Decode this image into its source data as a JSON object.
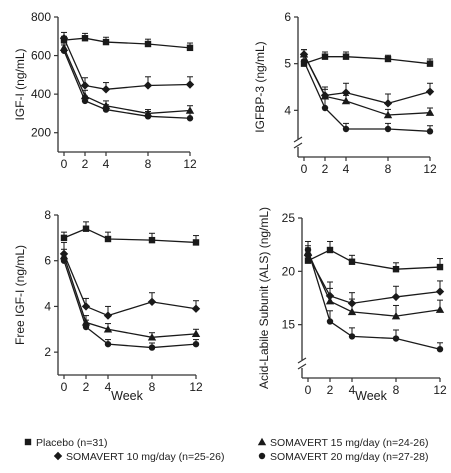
{
  "colors": {
    "ink": "#1a1a1a",
    "axis": "#333333"
  },
  "legend": {
    "entries": [
      {
        "label": "Placebo (n=31)",
        "marker": "square"
      },
      {
        "label": "SOMAVERT 10 mg/day (n=25-26)",
        "marker": "diamond"
      },
      {
        "label": "SOMAVERT 15 mg/day (n=24-26)",
        "marker": "triangle"
      },
      {
        "label": "SOMAVERT 20 mg/day (n=27-28)",
        "marker": "circle"
      }
    ]
  },
  "chart_data": [
    {
      "type": "line",
      "ylabel": "IGF-I (ng/mL)",
      "xlabel": "",
      "ylim": [
        100,
        800
      ],
      "yticks": [
        200,
        400,
        600,
        800
      ],
      "x": [
        0,
        2,
        4,
        8,
        12
      ],
      "xtick_labels": [
        "0",
        "2",
        "4",
        "8",
        "12"
      ],
      "axis_break": false,
      "series": [
        {
          "marker": "square",
          "values": [
            680,
            690,
            670,
            660,
            640
          ],
          "err": [
            20,
            25,
            25,
            25,
            25
          ]
        },
        {
          "marker": "diamond",
          "values": [
            690,
            445,
            425,
            445,
            450
          ],
          "err": [
            30,
            40,
            35,
            45,
            40
          ]
        },
        {
          "marker": "triangle",
          "values": [
            640,
            390,
            340,
            300,
            315
          ],
          "err": [
            25,
            30,
            25,
            20,
            25
          ]
        },
        {
          "marker": "circle",
          "values": [
            625,
            365,
            320,
            285,
            275
          ],
          "err": [
            30,
            25,
            25,
            25,
            30
          ]
        }
      ]
    },
    {
      "type": "line",
      "ylabel": "IGFBP-3 (ng/mL)",
      "xlabel": "",
      "ylim": [
        3,
        6
      ],
      "yticks": [
        4,
        5,
        6
      ],
      "x": [
        0,
        2,
        4,
        8,
        12
      ],
      "xtick_labels": [
        "0",
        "2",
        "4",
        "8",
        "12"
      ],
      "axis_break": true,
      "series": [
        {
          "marker": "square",
          "values": [
            5.0,
            5.15,
            5.15,
            5.1,
            5.0
          ],
          "err": [
            0.08,
            0.1,
            0.1,
            0.08,
            0.1
          ]
        },
        {
          "marker": "diamond",
          "values": [
            5.2,
            4.32,
            4.38,
            4.15,
            4.4
          ],
          "err": [
            0.1,
            0.18,
            0.2,
            0.2,
            0.18
          ]
        },
        {
          "marker": "triangle",
          "values": [
            5.2,
            4.3,
            4.2,
            3.9,
            3.95
          ],
          "err": [
            0.1,
            0.15,
            0.12,
            0.12,
            0.1
          ]
        },
        {
          "marker": "circle",
          "values": [
            5.05,
            4.05,
            3.6,
            3.6,
            3.55
          ],
          "err": [
            0.1,
            0.2,
            0.12,
            0.12,
            0.12
          ]
        }
      ]
    },
    {
      "type": "line",
      "ylabel": "Free IGF-I (ng/mL)",
      "xlabel": "Week",
      "ylim": [
        1,
        8
      ],
      "yticks": [
        2,
        4,
        6,
        8
      ],
      "x": [
        0,
        2,
        4,
        8,
        12
      ],
      "xtick_labels": [
        "0",
        "2",
        "4",
        "8",
        "12"
      ],
      "axis_break": false,
      "series": [
        {
          "marker": "square",
          "values": [
            7.0,
            7.4,
            6.95,
            6.9,
            6.8
          ],
          "err": [
            0.25,
            0.3,
            0.3,
            0.3,
            0.3
          ]
        },
        {
          "marker": "diamond",
          "values": [
            6.3,
            4.0,
            3.6,
            4.2,
            3.9
          ],
          "err": [
            0.5,
            0.35,
            0.4,
            0.4,
            0.35
          ]
        },
        {
          "marker": "triangle",
          "values": [
            6.2,
            3.3,
            3.0,
            2.65,
            2.8
          ],
          "err": [
            0.3,
            0.3,
            0.25,
            0.2,
            0.2
          ]
        },
        {
          "marker": "circle",
          "values": [
            6.0,
            3.1,
            2.35,
            2.2,
            2.35
          ],
          "err": [
            0.3,
            0.3,
            0.2,
            0.2,
            0.2
          ]
        }
      ]
    },
    {
      "type": "line",
      "ylabel": "Acid-Labile Subunit (ALS) (ng/mL)",
      "xlabel": "Week",
      "ylim": [
        10,
        25
      ],
      "yticks": [
        15,
        20,
        25
      ],
      "x": [
        0,
        2,
        4,
        8,
        12
      ],
      "xtick_labels": [
        "0",
        "2",
        "4",
        "8",
        "12"
      ],
      "axis_break": true,
      "series": [
        {
          "marker": "square",
          "values": [
            21.0,
            22.0,
            20.9,
            20.2,
            20.4
          ],
          "err": [
            0.5,
            0.8,
            0.6,
            0.6,
            0.8
          ]
        },
        {
          "marker": "diamond",
          "values": [
            21.5,
            17.7,
            17.0,
            17.6,
            18.1
          ],
          "err": [
            0.7,
            1.3,
            1.0,
            1.0,
            1.0
          ]
        },
        {
          "marker": "triangle",
          "values": [
            21.8,
            17.2,
            16.2,
            15.8,
            16.4
          ],
          "err": [
            0.6,
            1.2,
            1.2,
            1.0,
            0.9
          ]
        },
        {
          "marker": "circle",
          "values": [
            22.0,
            15.3,
            13.9,
            13.7,
            12.7
          ],
          "err": [
            0.8,
            1.0,
            0.8,
            0.8,
            0.6
          ]
        }
      ]
    }
  ]
}
